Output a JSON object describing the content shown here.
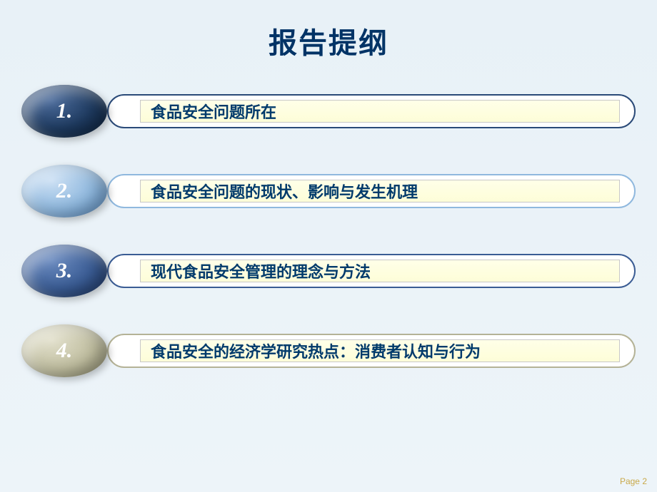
{
  "title": "报告提纲",
  "items": [
    {
      "num": "1.",
      "label": "食品安全问题所在",
      "oval_bg": "radial-gradient(ellipse at 35% 30%, #4a6a9a 0%, #1e3a5f 55%, #0a1f38 100%)",
      "pill_border": "#2a4a78"
    },
    {
      "num": "2.",
      "label": "食品安全问题的现状、影响与发生机理",
      "oval_bg": "radial-gradient(ellipse at 35% 30%, #cce0f4 0%, #8fb8de 55%, #5a8ec4 100%)",
      "pill_border": "#8fb8de"
    },
    {
      "num": "3.",
      "label": "现代食品安全管理的理念与方法",
      "oval_bg": "radial-gradient(ellipse at 35% 30%, #6a8abf 0%, #3a5c94 55%, #1a3360 100%)",
      "pill_border": "#3a5c94"
    },
    {
      "num": "4.",
      "label": "食品安全的经济学研究热点：消费者认知与行为",
      "oval_bg": "radial-gradient(ellipse at 35% 30%, #e2e0cc 0%, #c0bea0 55%, #8f8d6f 100%)",
      "pill_border": "#b4b296"
    }
  ],
  "page_label": "Page 2"
}
